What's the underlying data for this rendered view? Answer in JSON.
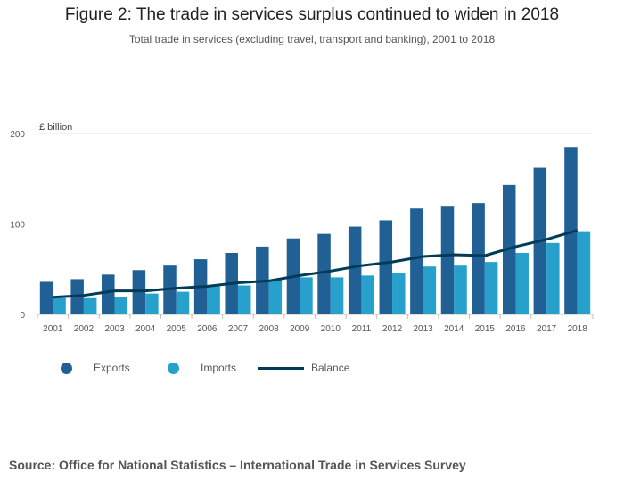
{
  "title": "Figure 2: The trade in services surplus continued to widen in 2018",
  "subtitle": "Total trade in services (excluding travel, transport and banking), 2001 to 2018",
  "source": "Source: Office for National Statistics – International Trade in Services Survey",
  "colors": {
    "exports": "#206095",
    "imports": "#27a0cc",
    "balance": "#003c57",
    "grid": "#e6e6e6",
    "axis": "#bfbfbf"
  },
  "chart_data": {
    "type": "bar",
    "unit_label": "£ billion",
    "categories": [
      "2001",
      "2002",
      "2003",
      "2004",
      "2005",
      "2006",
      "2007",
      "2008",
      "2009",
      "2010",
      "2011",
      "2012",
      "2013",
      "2014",
      "2015",
      "2016",
      "2017",
      "2018"
    ],
    "series": [
      {
        "name": "Exports",
        "kind": "bar",
        "values": [
          36,
          39,
          44,
          49,
          54,
          61,
          68,
          75,
          84,
          89,
          97,
          104,
          117,
          120,
          123,
          143,
          162,
          185
        ]
      },
      {
        "name": "Imports",
        "kind": "bar",
        "values": [
          18,
          18,
          19,
          23,
          25,
          31,
          32,
          38,
          41,
          41,
          43,
          46,
          53,
          54,
          58,
          68,
          79,
          92
        ]
      },
      {
        "name": "Balance",
        "kind": "line",
        "values": [
          19,
          21,
          26,
          26,
          29,
          31,
          35,
          37,
          43,
          48,
          54,
          58,
          64,
          66,
          65,
          75,
          83,
          93
        ]
      }
    ],
    "y_ticks": [
      0,
      100,
      200
    ],
    "ylim": [
      0,
      200
    ],
    "legend_position": "bottom-left",
    "grid": true
  }
}
